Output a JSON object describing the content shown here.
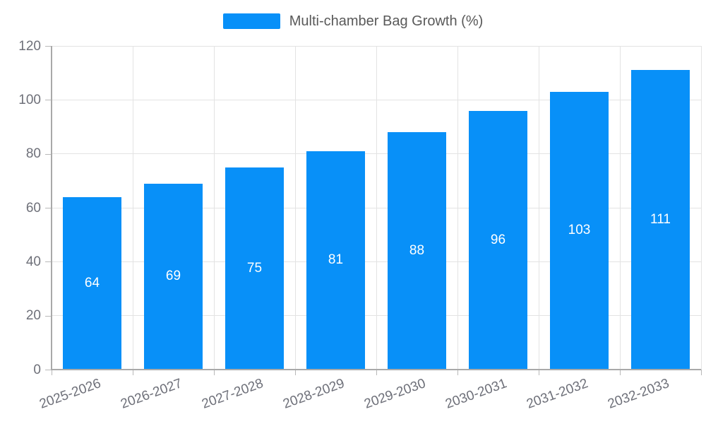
{
  "chart_data": {
    "type": "bar",
    "title": "",
    "legend": "Multi-chamber Bag Growth (%)",
    "legend_position": "top",
    "categories": [
      "2025-2026",
      "2026-2027",
      "2027-2028",
      "2028-2029",
      "2029-2030",
      "2030-2031",
      "2031-2032",
      "2032-2033"
    ],
    "series": [
      {
        "name": "Multi-chamber Bag Growth (%)",
        "values": [
          64,
          69,
          75,
          81,
          88,
          96,
          103,
          111
        ]
      }
    ],
    "ylabel": "",
    "xlabel": "",
    "ylim": [
      0,
      120
    ],
    "yticks": [
      0,
      20,
      40,
      60,
      80,
      100,
      120
    ],
    "grid": "horizontal and vertical light gray gridlines",
    "x_label_rotation_deg": -20,
    "value_labels": "white, centered inside bars",
    "colors": {
      "bar": "#0890F8",
      "value_label": "#FFFFFF",
      "legend_text": "#595959",
      "axis_text": "#6E7079",
      "grid_line": "#E3E3E3",
      "axis_line": "#A9A9A9",
      "tick_mark": "#B8B8B8",
      "background": "#FFFFFF"
    }
  }
}
